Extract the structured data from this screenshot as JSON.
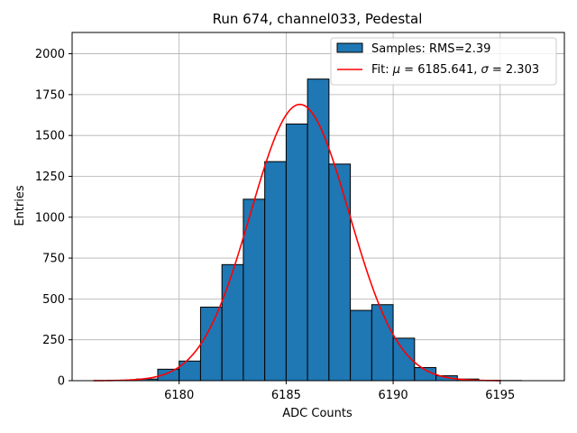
{
  "chart_data": {
    "type": "bar",
    "title": "Run 674, channel033, Pedestal",
    "xlabel": "ADC Counts",
    "ylabel": "Entries",
    "xlim": [
      6175.0,
      6198.0
    ],
    "ylim": [
      0,
      2130
    ],
    "xticks": [
      6180,
      6185,
      6190,
      6195
    ],
    "yticks": [
      0,
      250,
      500,
      750,
      1000,
      1250,
      1500,
      1750,
      2000
    ],
    "grid": true,
    "legend_position": "top-right",
    "histogram": {
      "name": "Samples: RMS=2.39",
      "bin_width": 1,
      "bin_edges_start": [
        6177,
        6178,
        6179,
        6180,
        6181,
        6182,
        6183,
        6184,
        6185,
        6186,
        6187,
        6188,
        6189,
        6190,
        6191,
        6192,
        6193,
        6194,
        6195,
        6196
      ],
      "values": [
        2,
        10,
        70,
        120,
        450,
        710,
        1110,
        1340,
        1570,
        1845,
        1325,
        430,
        465,
        260,
        80,
        30,
        10,
        2,
        1,
        0
      ],
      "color": "#1f77b4",
      "edgecolor": "#000000"
    },
    "fit": {
      "name": "Fit: μ = 6185.641, σ = 2.303",
      "mu": 6185.641,
      "sigma": 2.303,
      "amplitude": 1690,
      "x_range": [
        6176,
        6195
      ],
      "color": "#ff0000"
    },
    "legend": {
      "hist_label_prefix": "Samples: RMS=2.39",
      "fit_label_prefix": "Fit: ",
      "fit_mu_symbol": "μ",
      "fit_mu_value": " = 6185.641, ",
      "fit_sigma_symbol": "σ",
      "fit_sigma_value": " = 2.303"
    }
  }
}
